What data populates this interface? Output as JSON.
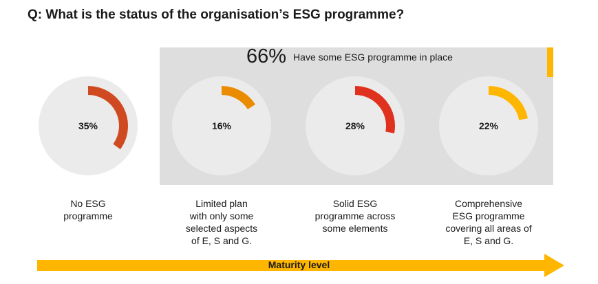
{
  "question": "Q: What is the status of the organisation’s ESG programme?",
  "panel": {
    "percent": "66%",
    "text": "Have some ESG programme in place",
    "panel_color": "#dedede",
    "accent_color": "#ffb600"
  },
  "chart_data": {
    "type": "donut",
    "categories": [
      "No ESG programme",
      "Limited plan with only some selected aspects of E, S and G.",
      "Solid ESG programme across some elements",
      "Comprehensive ESG programme covering all areas of E, S and G."
    ],
    "values": [
      35,
      16,
      28,
      22
    ],
    "value_labels": [
      "35%",
      "16%",
      "28%",
      "22%"
    ],
    "colors": [
      "#d04a21",
      "#eb8c00",
      "#e0301e",
      "#ffb600"
    ],
    "track_color": "#ebebeb",
    "grouped_total": 66,
    "grouped_label": "Have some ESG programme in place",
    "unit": "%"
  },
  "captions": [
    [
      "No ESG",
      "programme"
    ],
    [
      "Limited plan",
      "with only some",
      "selected aspects",
      "of E, S and G."
    ],
    [
      "Solid ESG",
      "programme across",
      "some elements"
    ],
    [
      "Comprehensive",
      "ESG programme",
      "covering all areas of",
      "E, S and G."
    ]
  ],
  "arrow": {
    "label": "Maturity level",
    "color": "#ffb600"
  }
}
